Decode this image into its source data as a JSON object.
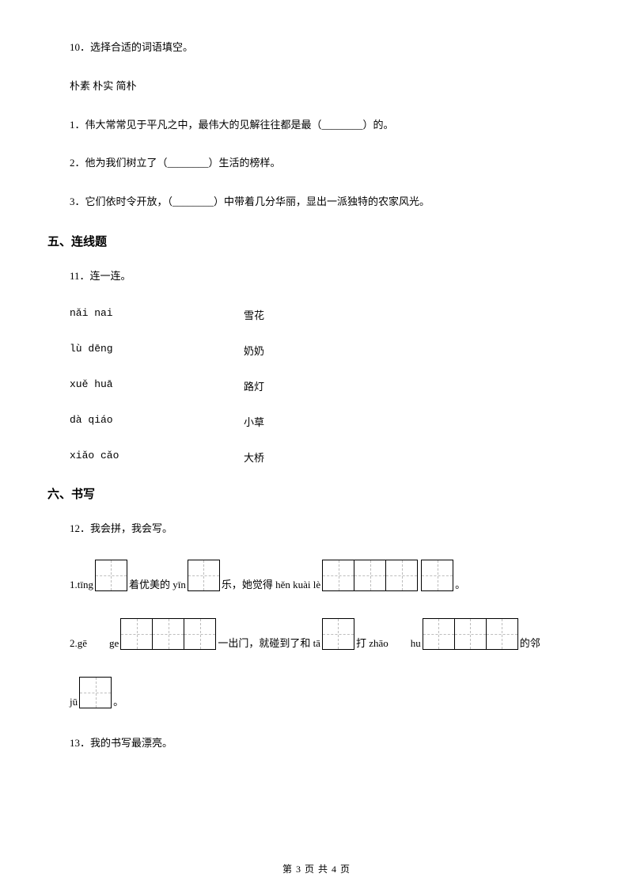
{
  "q10": {
    "prompt": "10．选择合适的词语填空。",
    "words": "朴素 朴实 简朴",
    "item1": "1．伟大常常见于平凡之中，最伟大的见解往往都是最（________）的。",
    "item2": "2．他为我们树立了（________）生活的榜样。",
    "item3": "3．它们依时令开放，（________）中带着几分华丽，显出一派独特的农家风光。"
  },
  "section5": "五、连线题",
  "q11": {
    "prompt": "11．连一连。",
    "rows": [
      {
        "left": "nǎi nai",
        "right": "雪花"
      },
      {
        "left": "lù dēng",
        "right": "奶奶"
      },
      {
        "left": "xuě huā",
        "right": "路灯"
      },
      {
        "left": "dà qiáo",
        "right": "小草"
      },
      {
        "left": "xiǎo cǎo",
        "right": "大桥"
      }
    ]
  },
  "section6": "六、书写",
  "q12": {
    "prompt": "12．我会拼，我会写。",
    "line1": {
      "t1": "1.tīng",
      "box1_cells": 1,
      "t2": "着优美的 yīn",
      "box2_cells": 1,
      "t3": "乐，她觉得 hěn kuài lè",
      "box3_cells": 3,
      "box4_cells": 1,
      "t4": "。"
    },
    "line2": {
      "t1": "2.gē",
      "t2": "ge",
      "box1_cells": 3,
      "t3": "一出门，就碰到了和 tā",
      "box2_cells": 1,
      "t4": "打 zhāo",
      "t5": "hu",
      "box3_cells": 3,
      "t6": "的邻"
    },
    "line3": {
      "t1": "jū",
      "box1_cells": 1,
      "t2": "。"
    }
  },
  "q13": {
    "prompt": "13．我的书写最漂亮。"
  },
  "footer": "第 3 页 共 4 页"
}
